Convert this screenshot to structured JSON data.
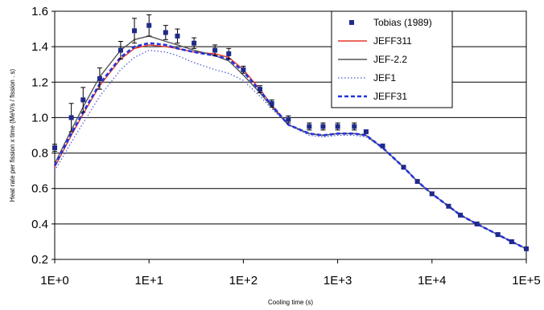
{
  "chart_data": {
    "type": "line",
    "xlabel": "Cooling time (s)",
    "ylabel": "Heat rate per fission x time (MeV/s / fission . s)",
    "x_scale": "log",
    "xlim": [
      1,
      100000
    ],
    "ylim": [
      0.2,
      1.6
    ],
    "x_ticks": [
      1,
      10,
      100,
      1000,
      10000,
      100000
    ],
    "x_tick_labels": [
      "1E+0",
      "1E+1",
      "1E+2",
      "1E+3",
      "1E+4",
      "1E+5"
    ],
    "y_ticks": [
      0.2,
      0.4,
      0.6,
      0.8,
      1.0,
      1.2,
      1.4,
      1.6
    ],
    "y_tick_labels": [
      "0.2",
      "0.4",
      "0.6",
      "0.8",
      "1.0",
      "1.2",
      "1.4",
      "1.6"
    ],
    "grid": "horizontal",
    "legend_position": "top-right",
    "experimental": {
      "name": "Tobias (1989)",
      "color": "#1f2a8a",
      "x": [
        1,
        1.5,
        2,
        3,
        5,
        7,
        10,
        15,
        20,
        30,
        50,
        70,
        100,
        150,
        200,
        300,
        500,
        700,
        1000,
        1500,
        2000,
        3000,
        5000,
        7000,
        10000,
        15000,
        20000,
        30000,
        50000,
        70000,
        100000
      ],
      "y": [
        0.83,
        1.0,
        1.1,
        1.22,
        1.38,
        1.49,
        1.52,
        1.48,
        1.46,
        1.42,
        1.38,
        1.36,
        1.27,
        1.16,
        1.08,
        0.99,
        0.95,
        0.95,
        0.95,
        0.95,
        0.92,
        0.84,
        0.72,
        0.64,
        0.57,
        0.5,
        0.45,
        0.4,
        0.34,
        0.3,
        0.26
      ],
      "err": [
        0.02,
        0.08,
        0.07,
        0.06,
        0.05,
        0.07,
        0.06,
        0.04,
        0.04,
        0.03,
        0.03,
        0.03,
        0.02,
        0.02,
        0.02,
        0.02,
        0.02,
        0.02,
        0.02,
        0.02,
        0.01,
        0.01,
        0.01,
        0.01,
        0.01,
        0.01,
        0.01,
        0.01,
        0.01,
        0.01,
        0.01
      ]
    },
    "series": [
      {
        "name": "JEFF311",
        "color": "#e8372a",
        "style": "solid",
        "x": [
          1,
          1.5,
          2,
          3,
          5,
          7,
          10,
          15,
          20,
          30,
          50,
          70,
          100,
          150,
          200,
          300,
          500,
          700,
          1000,
          1500,
          2000,
          3000,
          5000,
          7000,
          10000,
          15000,
          20000,
          30000,
          50000,
          70000,
          100000
        ],
        "y": [
          0.72,
          0.9,
          1.02,
          1.18,
          1.33,
          1.39,
          1.41,
          1.4,
          1.39,
          1.37,
          1.36,
          1.34,
          1.27,
          1.16,
          1.07,
          0.96,
          0.91,
          0.9,
          0.91,
          0.91,
          0.9,
          0.83,
          0.72,
          0.64,
          0.57,
          0.5,
          0.45,
          0.4,
          0.34,
          0.3,
          0.26
        ]
      },
      {
        "name": "JEF-2.2",
        "color": "#555555",
        "style": "solid",
        "x": [
          1,
          1.5,
          2,
          3,
          5,
          7,
          10,
          15,
          20,
          30,
          50,
          70,
          100,
          150,
          200,
          300,
          500,
          700,
          1000,
          1500,
          2000,
          3000,
          5000,
          7000,
          10000,
          15000,
          20000,
          30000,
          50000,
          70000,
          100000
        ],
        "y": [
          0.74,
          0.93,
          1.06,
          1.23,
          1.38,
          1.44,
          1.46,
          1.43,
          1.41,
          1.38,
          1.35,
          1.32,
          1.24,
          1.14,
          1.06,
          0.96,
          0.91,
          0.9,
          0.91,
          0.91,
          0.9,
          0.83,
          0.72,
          0.64,
          0.57,
          0.5,
          0.45,
          0.4,
          0.34,
          0.3,
          0.26
        ]
      },
      {
        "name": "JEF1",
        "color": "#4455cc",
        "style": "dotted",
        "x": [
          1,
          1.5,
          2,
          3,
          5,
          7,
          10,
          15,
          20,
          30,
          50,
          70,
          100,
          150,
          200,
          300,
          500,
          700,
          1000,
          1500,
          2000,
          3000,
          5000,
          7000,
          10000,
          15000,
          20000,
          30000,
          50000,
          70000,
          100000
        ],
        "y": [
          0.7,
          0.86,
          0.97,
          1.12,
          1.27,
          1.34,
          1.38,
          1.37,
          1.35,
          1.31,
          1.27,
          1.25,
          1.21,
          1.12,
          1.05,
          0.96,
          0.9,
          0.89,
          0.9,
          0.9,
          0.89,
          0.83,
          0.72,
          0.64,
          0.57,
          0.5,
          0.45,
          0.4,
          0.34,
          0.3,
          0.26
        ]
      },
      {
        "name": "JEFF31",
        "color": "#2233dd",
        "style": "dashed",
        "x": [
          1,
          1.5,
          2,
          3,
          5,
          7,
          10,
          15,
          20,
          30,
          50,
          70,
          100,
          150,
          200,
          300,
          500,
          700,
          1000,
          1500,
          2000,
          3000,
          5000,
          7000,
          10000,
          15000,
          20000,
          30000,
          50000,
          70000,
          100000
        ],
        "y": [
          0.73,
          0.91,
          1.03,
          1.19,
          1.34,
          1.4,
          1.42,
          1.41,
          1.39,
          1.37,
          1.35,
          1.33,
          1.26,
          1.15,
          1.07,
          0.96,
          0.91,
          0.9,
          0.91,
          0.91,
          0.9,
          0.83,
          0.72,
          0.64,
          0.57,
          0.5,
          0.45,
          0.4,
          0.34,
          0.3,
          0.26
        ]
      }
    ]
  }
}
